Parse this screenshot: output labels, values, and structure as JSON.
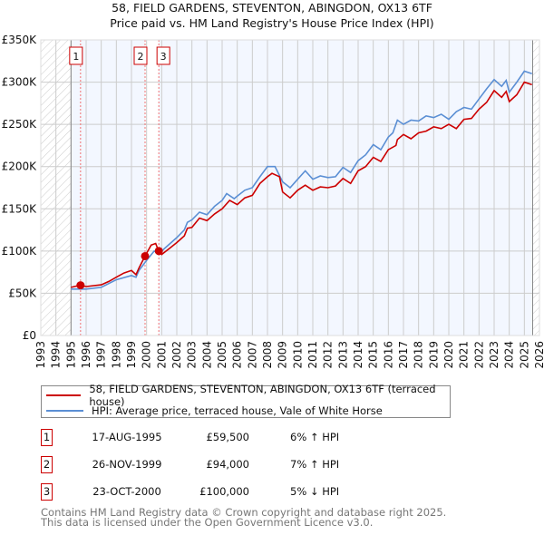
{
  "chart_data": {
    "type": "line",
    "title": "58, FIELD GARDENS, STEVENTON, ABINGDON, OX13 6TF",
    "subtitle": "Price paid vs. HM Land Registry's House Price Index (HPI)",
    "xlim": [
      1993,
      2026
    ],
    "ylim": [
      0,
      350000
    ],
    "x_ticks": [
      "1993",
      "1994",
      "1995",
      "1996",
      "1997",
      "1998",
      "1999",
      "2000",
      "2001",
      "2002",
      "2003",
      "2004",
      "2005",
      "2006",
      "2007",
      "2008",
      "2009",
      "2010",
      "2011",
      "2012",
      "2013",
      "2014",
      "2015",
      "2016",
      "2017",
      "2018",
      "2019",
      "2020",
      "2021",
      "2022",
      "2023",
      "2024",
      "2025",
      "2026"
    ],
    "y_ticks": [
      {
        "v": 0,
        "label": "£0"
      },
      {
        "v": 50000,
        "label": "£50K"
      },
      {
        "v": 100000,
        "label": "£100K"
      },
      {
        "v": 150000,
        "label": "£150K"
      },
      {
        "v": 200000,
        "label": "£200K"
      },
      {
        "v": 250000,
        "label": "£250K"
      },
      {
        "v": 300000,
        "label": "£300K"
      },
      {
        "v": 350000,
        "label": "£350K"
      }
    ],
    "grid": true,
    "data_range": [
      1995,
      2025.55
    ],
    "series": [
      {
        "name": "58, FIELD GARDENS, STEVENTON, ABINGDON, OX13 6TF (terraced house)",
        "color": "#cc0000",
        "x": [
          1995,
          1995.6,
          1996,
          1997,
          1997.5,
          1998,
          1998.5,
          1999,
          1999.3,
          1999.5,
          1999.9,
          2000.3,
          2000.6,
          2000.8,
          2001,
          2001.5,
          2002,
          2002.5,
          2002.7,
          2003,
          2003.5,
          2004,
          2004.5,
          2005,
          2005.5,
          2006,
          2006.5,
          2007,
          2007.5,
          2008,
          2008.3,
          2008.8,
          2009,
          2009.5,
          2010,
          2010.5,
          2011,
          2011.5,
          2012,
          2012.5,
          2013,
          2013.5,
          2014,
          2014.5,
          2015,
          2015.5,
          2016,
          2016.5,
          2016.6,
          2017,
          2017.5,
          2018,
          2018.5,
          2019,
          2019.5,
          2020,
          2020.5,
          2021,
          2021.5,
          2022,
          2022.5,
          2023,
          2023.5,
          2023.8,
          2024,
          2024.5,
          2025,
          2025.5
        ],
        "y": [
          57000,
          59500,
          58000,
          60000,
          64000,
          69000,
          74000,
          77000,
          72000,
          80000,
          94000,
          107000,
          109000,
          100000,
          96000,
          103000,
          110000,
          118000,
          127000,
          128000,
          139000,
          136000,
          144000,
          150000,
          160000,
          155000,
          163000,
          166000,
          180000,
          188000,
          192000,
          188000,
          170000,
          163000,
          172000,
          178000,
          172000,
          176000,
          175000,
          177000,
          186000,
          180000,
          195000,
          200000,
          211000,
          206000,
          220000,
          225000,
          232000,
          238000,
          233000,
          240000,
          242000,
          247000,
          245000,
          250000,
          245000,
          256000,
          257000,
          268000,
          276000,
          290000,
          282000,
          289000,
          277000,
          285000,
          300000,
          297000
        ]
      },
      {
        "name": "HPI: Average price, terraced house, Vale of White Horse",
        "color": "#5b8fd4",
        "x": [
          1995,
          1996,
          1997,
          1998,
          1999,
          1999.3,
          1999.5,
          2000,
          2000.5,
          2000.8,
          2001,
          2001.5,
          2002,
          2002.5,
          2002.7,
          2003,
          2003.5,
          2004,
          2004.5,
          2005,
          2005.3,
          2005.8,
          2006,
          2006.5,
          2007,
          2007.5,
          2008,
          2008.5,
          2009,
          2009.5,
          2010,
          2010.5,
          2011,
          2011.5,
          2012,
          2012.5,
          2013,
          2013.5,
          2014,
          2014.5,
          2015,
          2015.5,
          2016,
          2016.3,
          2016.6,
          2017,
          2017.5,
          2018,
          2018.5,
          2019,
          2019.5,
          2020,
          2020.5,
          2021,
          2021.5,
          2022,
          2022.5,
          2023,
          2023.5,
          2023.8,
          2024,
          2024.5,
          2025,
          2025.5
        ],
        "y": [
          55000,
          55000,
          57000,
          66000,
          71000,
          69000,
          77000,
          89000,
          100000,
          98000,
          100000,
          108000,
          116000,
          125000,
          134000,
          137000,
          146000,
          143000,
          153000,
          160000,
          168000,
          162000,
          165000,
          172000,
          175000,
          188000,
          200000,
          200000,
          182000,
          175000,
          185000,
          195000,
          185000,
          189000,
          187000,
          188000,
          199000,
          193000,
          207000,
          214000,
          226000,
          220000,
          235000,
          240000,
          255000,
          250000,
          255000,
          254000,
          260000,
          258000,
          262000,
          256000,
          265000,
          270000,
          268000,
          280000,
          292000,
          303000,
          295000,
          302000,
          288000,
          300000,
          313000,
          310000
        ]
      }
    ],
    "sales": [
      {
        "n": "1",
        "x": 1995.63,
        "y": 59500,
        "date": "17-AUG-1995",
        "price": "£59,500",
        "hpi": "6% ↑ HPI"
      },
      {
        "n": "2",
        "x": 1999.9,
        "y": 94000,
        "date": "26-NOV-1999",
        "price": "£94,000",
        "hpi": "7% ↑ HPI"
      },
      {
        "n": "3",
        "x": 2000.81,
        "y": 100000,
        "date": "23-OCT-2000",
        "price": "£100,000",
        "hpi": "5% ↓ HPI"
      }
    ]
  },
  "legend": {
    "property": "58, FIELD GARDENS, STEVENTON, ABINGDON, OX13 6TF (terraced house)",
    "hpi": "HPI: Average price, terraced house, Vale of White Horse"
  },
  "footer": {
    "line1": "Contains HM Land Registry data © Crown copyright and database right 2025.",
    "line2": "This data is licensed under the Open Government Licence v3.0."
  }
}
